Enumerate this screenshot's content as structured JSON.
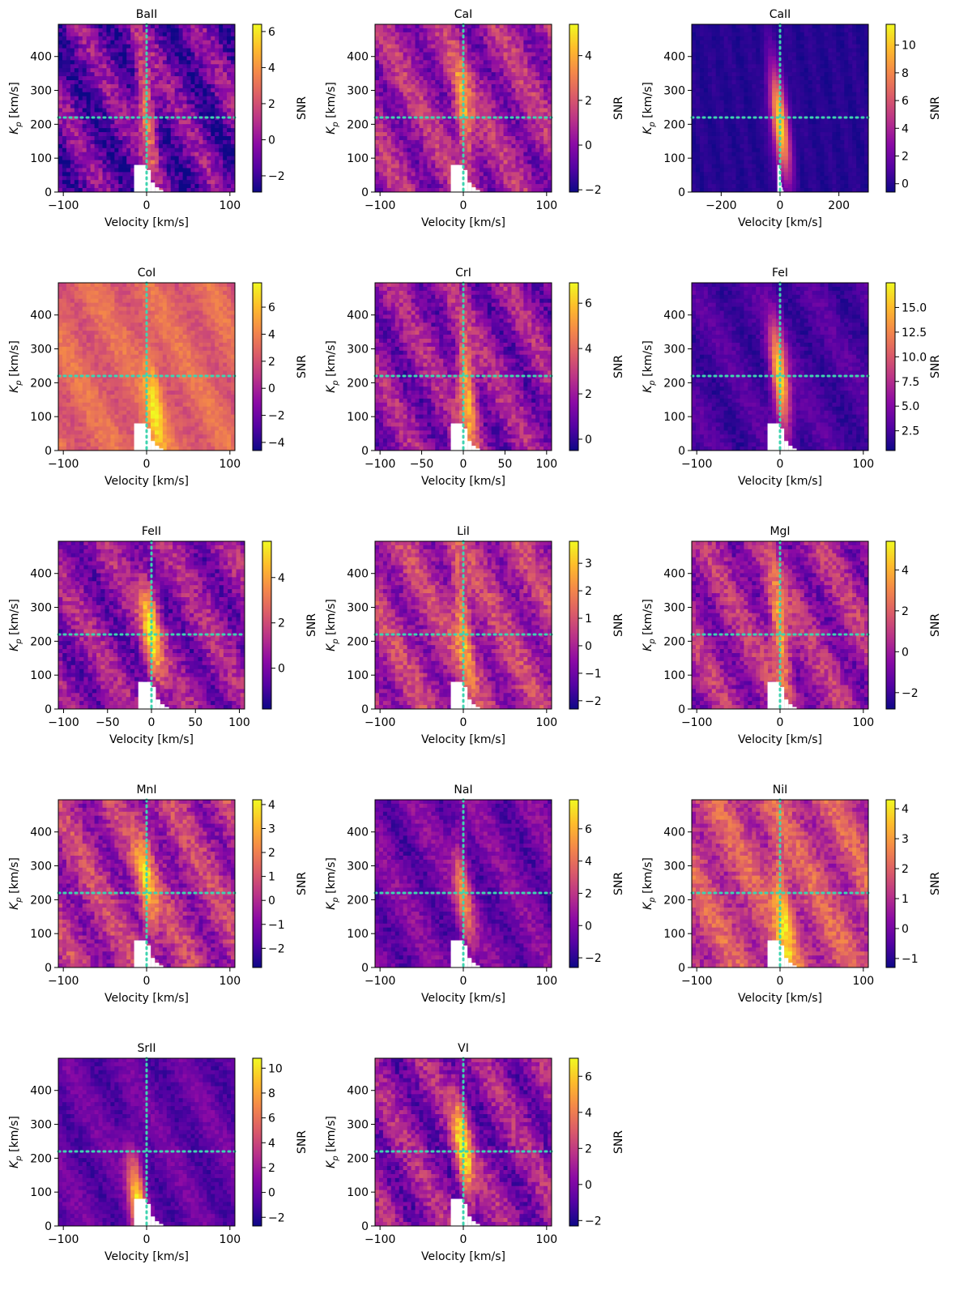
{
  "figure": {
    "xlabel": "Velocity [km/s]",
    "ylabel_main": "K",
    "ylabel_sub": "p",
    "ylabel_unit": " [km/s]",
    "colorbar_label": "SNR"
  },
  "colors": {
    "crosshair": "#3fd4b0",
    "colormap": "plasma",
    "mask": "#ffffff"
  },
  "chart_data": [
    {
      "type": "heatmap",
      "title": "BaII",
      "xlabel": "Velocity [km/s]",
      "ylabel": "K_p [km/s]",
      "xlim": [
        -106,
        106
      ],
      "ylim": [
        0,
        495
      ],
      "xticks": [
        -100,
        0,
        100
      ],
      "yticks": [
        0,
        100,
        200,
        300,
        400
      ],
      "colorbar": {
        "label": "SNR",
        "vmin": -2.9,
        "vmax": 6.4,
        "ticks": [
          -2,
          0,
          2,
          4,
          6
        ]
      },
      "crosshair": {
        "velocity": 0,
        "kp": 220
      },
      "signal": {
        "peak_snr": 4.5,
        "peak_kp": 240,
        "peak_velocity": 0
      },
      "background": 0.2,
      "contrast": 0.35
    },
    {
      "type": "heatmap",
      "title": "CaI",
      "xlabel": "Velocity [km/s]",
      "ylabel": "K_p [km/s]",
      "xlim": [
        -106,
        106
      ],
      "ylim": [
        0,
        495
      ],
      "xticks": [
        -100,
        0,
        100
      ],
      "yticks": [
        0,
        100,
        200,
        300,
        400
      ],
      "colorbar": {
        "label": "SNR",
        "vmin": -2.1,
        "vmax": 5.4,
        "ticks": [
          -2,
          0,
          2,
          4
        ]
      },
      "crosshair": {
        "velocity": 0,
        "kp": 220
      },
      "signal": {
        "peak_snr": 4.2,
        "peak_kp": 230,
        "peak_velocity": 0
      },
      "background": 0.35,
      "contrast": 0.3
    },
    {
      "type": "heatmap",
      "title": "CaII",
      "xlabel": "Velocity [km/s]",
      "ylabel": "K_p [km/s]",
      "xlim": [
        -300,
        300
      ],
      "ylim": [
        0,
        495
      ],
      "xticks": [
        -200,
        0,
        200
      ],
      "yticks": [
        0,
        100,
        200,
        300,
        400
      ],
      "colorbar": {
        "label": "SNR",
        "vmin": -0.6,
        "vmax": 11.5,
        "ticks": [
          0,
          2,
          4,
          6,
          8,
          10
        ]
      },
      "crosshair": {
        "velocity": 0,
        "kp": 220
      },
      "signal": {
        "peak_snr": 11.0,
        "peak_kp": 200,
        "peak_velocity": 0
      },
      "background": 0.05,
      "contrast": 0.05
    },
    {
      "type": "heatmap",
      "title": "CoI",
      "xlabel": "Velocity [km/s]",
      "ylabel": "K_p [km/s]",
      "xlim": [
        -106,
        106
      ],
      "ylim": [
        0,
        495
      ],
      "xticks": [
        -100,
        0,
        100
      ],
      "yticks": [
        0,
        100,
        200,
        300,
        400
      ],
      "colorbar": {
        "label": "SNR",
        "vmin": -4.6,
        "vmax": 7.8,
        "ticks": [
          -4,
          -2,
          0,
          2,
          4,
          6
        ]
      },
      "crosshair": {
        "velocity": 0,
        "kp": 220
      },
      "signal": {
        "peak_snr": 7.0,
        "peak_kp": 120,
        "peak_velocity": 10
      },
      "background": 0.6,
      "contrast": 0.15
    },
    {
      "type": "heatmap",
      "title": "CrI",
      "xlabel": "Velocity [km/s]",
      "ylabel": "K_p [km/s]",
      "xlim": [
        -106,
        106
      ],
      "ylim": [
        0,
        495
      ],
      "xticks": [
        -100,
        -50,
        0,
        50,
        100
      ],
      "yticks": [
        0,
        100,
        200,
        300,
        400
      ],
      "colorbar": {
        "label": "SNR",
        "vmin": -0.5,
        "vmax": 6.9,
        "ticks": [
          0,
          2,
          4,
          6
        ]
      },
      "crosshair": {
        "velocity": 0,
        "kp": 220
      },
      "signal": {
        "peak_snr": 6.5,
        "peak_kp": 180,
        "peak_velocity": 5
      },
      "background": 0.3,
      "contrast": 0.3
    },
    {
      "type": "heatmap",
      "title": "FeI",
      "xlabel": "Velocity [km/s]",
      "ylabel": "K_p [km/s]",
      "xlim": [
        -106,
        106
      ],
      "ylim": [
        0,
        495
      ],
      "xticks": [
        -100,
        0,
        100
      ],
      "yticks": [
        0,
        100,
        200,
        300,
        400
      ],
      "colorbar": {
        "label": "SNR",
        "vmin": 0.5,
        "vmax": 17.5,
        "ticks": [
          2.5,
          5.0,
          7.5,
          10.0,
          12.5,
          15.0
        ]
      },
      "crosshair": {
        "velocity": 0,
        "kp": 220
      },
      "signal": {
        "peak_snr": 17.0,
        "peak_kp": 210,
        "peak_velocity": 0
      },
      "background": 0.12,
      "contrast": 0.12
    },
    {
      "type": "heatmap",
      "title": "FeII",
      "xlabel": "Velocity [km/s]",
      "ylabel": "K_p [km/s]",
      "xlim": [
        -106,
        106
      ],
      "ylim": [
        0,
        495
      ],
      "xticks": [
        -100,
        -50,
        0,
        50,
        100
      ],
      "yticks": [
        0,
        100,
        200,
        300,
        400
      ],
      "colorbar": {
        "label": "SNR",
        "vmin": -1.8,
        "vmax": 5.6,
        "ticks": [
          0,
          2,
          4
        ]
      },
      "crosshair": {
        "velocity": 0,
        "kp": 220
      },
      "signal": {
        "peak_snr": 5.0,
        "peak_kp": 230,
        "peak_velocity": 0
      },
      "background": 0.3,
      "contrast": 0.3
    },
    {
      "type": "heatmap",
      "title": "LiI",
      "xlabel": "Velocity [km/s]",
      "ylabel": "K_p [km/s]",
      "xlim": [
        -106,
        106
      ],
      "ylim": [
        0,
        495
      ],
      "xticks": [
        -100,
        0,
        100
      ],
      "yticks": [
        0,
        100,
        200,
        300,
        400
      ],
      "colorbar": {
        "label": "SNR",
        "vmin": -2.3,
        "vmax": 3.8,
        "ticks": [
          -2,
          -1,
          0,
          1,
          2,
          3
        ]
      },
      "crosshair": {
        "velocity": 0,
        "kp": 220
      },
      "signal": {
        "peak_snr": 3.0,
        "peak_kp": 250,
        "peak_velocity": 0
      },
      "background": 0.4,
      "contrast": 0.3
    },
    {
      "type": "heatmap",
      "title": "MgI",
      "xlabel": "Velocity [km/s]",
      "ylabel": "K_p [km/s]",
      "xlim": [
        -106,
        106
      ],
      "ylim": [
        0,
        495
      ],
      "xticks": [
        -100,
        0,
        100
      ],
      "yticks": [
        0,
        100,
        200,
        300,
        400
      ],
      "colorbar": {
        "label": "SNR",
        "vmin": -2.8,
        "vmax": 5.4,
        "ticks": [
          -2,
          0,
          2,
          4
        ]
      },
      "crosshair": {
        "velocity": 0,
        "kp": 220
      },
      "signal": {
        "peak_snr": 4.8,
        "peak_kp": 220,
        "peak_velocity": 0
      },
      "background": 0.35,
      "contrast": 0.3
    },
    {
      "type": "heatmap",
      "title": "MnI",
      "xlabel": "Velocity [km/s]",
      "ylabel": "K_p [km/s]",
      "xlim": [
        -106,
        106
      ],
      "ylim": [
        0,
        495
      ],
      "xticks": [
        -100,
        0,
        100
      ],
      "yticks": [
        0,
        100,
        200,
        300,
        400
      ],
      "colorbar": {
        "label": "SNR",
        "vmin": -2.8,
        "vmax": 4.2,
        "ticks": [
          -2,
          -1,
          0,
          1,
          2,
          3,
          4
        ]
      },
      "crosshair": {
        "velocity": 0,
        "kp": 220
      },
      "signal": {
        "peak_snr": 3.2,
        "peak_kp": 240,
        "peak_velocity": 0
      },
      "background": 0.4,
      "contrast": 0.3
    },
    {
      "type": "heatmap",
      "title": "NaI",
      "xlabel": "Velocity [km/s]",
      "ylabel": "K_p [km/s]",
      "xlim": [
        -106,
        106
      ],
      "ylim": [
        0,
        495
      ],
      "xticks": [
        -100,
        0,
        100
      ],
      "yticks": [
        0,
        100,
        200,
        300,
        400
      ],
      "colorbar": {
        "label": "SNR",
        "vmin": -2.6,
        "vmax": 7.8,
        "ticks": [
          -2,
          0,
          2,
          4,
          6
        ]
      },
      "crosshair": {
        "velocity": 0,
        "kp": 220
      },
      "signal": {
        "peak_snr": 4.5,
        "peak_kp": 220,
        "peak_velocity": 0
      },
      "background": 0.22,
      "contrast": 0.2
    },
    {
      "type": "heatmap",
      "title": "NiI",
      "xlabel": "Velocity [km/s]",
      "ylabel": "K_p [km/s]",
      "xlim": [
        -106,
        106
      ],
      "ylim": [
        0,
        495
      ],
      "xticks": [
        -100,
        0,
        100
      ],
      "yticks": [
        0,
        100,
        200,
        300,
        400
      ],
      "colorbar": {
        "label": "SNR",
        "vmin": -1.3,
        "vmax": 4.3,
        "ticks": [
          -1,
          0,
          1,
          2,
          3,
          4
        ]
      },
      "crosshair": {
        "velocity": 0,
        "kp": 220
      },
      "signal": {
        "peak_snr": 4.0,
        "peak_kp": 150,
        "peak_velocity": 5
      },
      "background": 0.5,
      "contrast": 0.28
    },
    {
      "type": "heatmap",
      "title": "SrII",
      "xlabel": "Velocity [km/s]",
      "ylabel": "K_p [km/s]",
      "xlim": [
        -106,
        106
      ],
      "ylim": [
        0,
        495
      ],
      "xticks": [
        -100,
        0,
        100
      ],
      "yticks": [
        0,
        100,
        200,
        300,
        400
      ],
      "colorbar": {
        "label": "SNR",
        "vmin": -2.7,
        "vmax": 10.8,
        "ticks": [
          -2,
          0,
          2,
          4,
          6,
          8,
          10
        ]
      },
      "crosshair": {
        "velocity": 0,
        "kp": 220
      },
      "signal": {
        "peak_snr": 10.0,
        "peak_kp": 60,
        "peak_velocity": -10
      },
      "background": 0.18,
      "contrast": 0.15
    },
    {
      "type": "heatmap",
      "title": "VI",
      "xlabel": "Velocity [km/s]",
      "ylabel": "K_p [km/s]",
      "xlim": [
        -106,
        106
      ],
      "ylim": [
        0,
        495
      ],
      "xticks": [
        -100,
        0,
        100
      ],
      "yticks": [
        0,
        100,
        200,
        300,
        400
      ],
      "colorbar": {
        "label": "SNR",
        "vmin": -2.3,
        "vmax": 7.0,
        "ticks": [
          -2,
          0,
          2,
          4,
          6
        ]
      },
      "crosshair": {
        "velocity": 0,
        "kp": 220
      },
      "signal": {
        "peak_snr": 6.5,
        "peak_kp": 220,
        "peak_velocity": 0
      },
      "background": 0.3,
      "contrast": 0.3
    }
  ]
}
